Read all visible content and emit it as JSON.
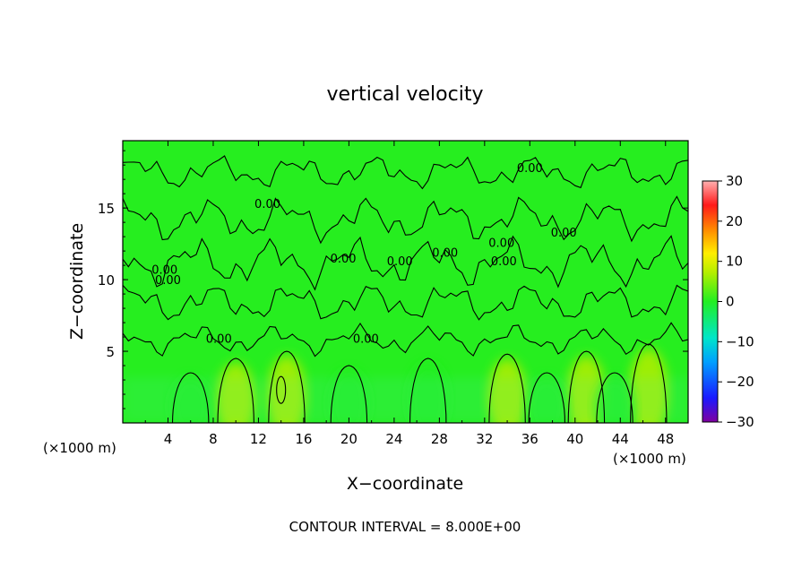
{
  "chart_data": {
    "type": "heatmap",
    "title": "vertical velocity",
    "xlabel": "X−coordinate",
    "ylabel": "Z−coordinate",
    "x_unit_left": "(×1000 m)",
    "x_unit_right": "(×1000 m)",
    "footer": "CONTOUR INTERVAL = 8.000E+00",
    "xlim": [
      0,
      50
    ],
    "ylim": [
      0,
      19.7
    ],
    "xticks": [
      4,
      8,
      12,
      16,
      20,
      24,
      28,
      32,
      36,
      40,
      44,
      48
    ],
    "yticks": [
      5,
      10,
      15
    ],
    "colorbar": {
      "min": -30,
      "max": 30,
      "ticks": [
        30,
        20,
        10,
        0,
        -10,
        -20,
        -30
      ],
      "tick_labels": [
        "30",
        "20",
        "10",
        "0",
        "−10",
        "−20",
        "−30"
      ]
    },
    "contour_label": "0.00",
    "contour_interval": 8.0,
    "updrafts": [
      {
        "x": 10,
        "top": 4.5,
        "w": 5
      },
      {
        "x": 14.5,
        "top": 5.0,
        "w": 7
      },
      {
        "x": 27,
        "top": 4.5,
        "w": 3
      },
      {
        "x": 34,
        "top": 4.8,
        "w": 6
      },
      {
        "x": 41,
        "top": 5.0,
        "w": 7
      },
      {
        "x": 46.5,
        "top": 5.5,
        "w": 6
      }
    ],
    "downdrafts": [
      {
        "x": 6,
        "top": 3.5,
        "w": -3
      },
      {
        "x": 20,
        "top": 4.0,
        "w": -4
      },
      {
        "x": 37.5,
        "top": 3.5,
        "w": -3
      },
      {
        "x": 43.5,
        "top": 3.5,
        "w": -3
      }
    ],
    "colors": {
      "background_field": "#26ee1f",
      "contour_line": "#000000"
    }
  }
}
